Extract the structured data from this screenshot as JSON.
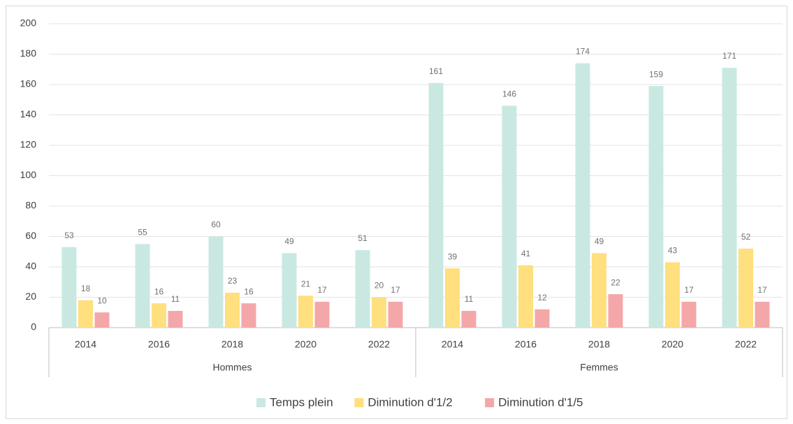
{
  "chart_data": {
    "type": "bar",
    "groups": [
      {
        "name": "Hommes",
        "categories": [
          "2014",
          "2016",
          "2018",
          "2020",
          "2022"
        ]
      },
      {
        "name": "Femmes",
        "categories": [
          "2014",
          "2016",
          "2018",
          "2020",
          "2022"
        ]
      }
    ],
    "series": [
      {
        "name": "Temps plein",
        "color": "#c9e8e2",
        "values": [
          53,
          55,
          60,
          49,
          51,
          161,
          146,
          174,
          159,
          171
        ]
      },
      {
        "name": "Diminution d'1/2",
        "color": "#ffdf7e",
        "values": [
          18,
          16,
          23,
          21,
          20,
          39,
          41,
          49,
          43,
          52
        ]
      },
      {
        "name": "Diminution d'1/5",
        "color": "#f4a7a9",
        "values": [
          10,
          11,
          16,
          17,
          17,
          11,
          12,
          22,
          17,
          17
        ]
      }
    ],
    "ylim": [
      0,
      200
    ],
    "yticks": [
      0,
      20,
      40,
      60,
      80,
      100,
      120,
      140,
      160,
      180,
      200
    ],
    "grid": true
  }
}
